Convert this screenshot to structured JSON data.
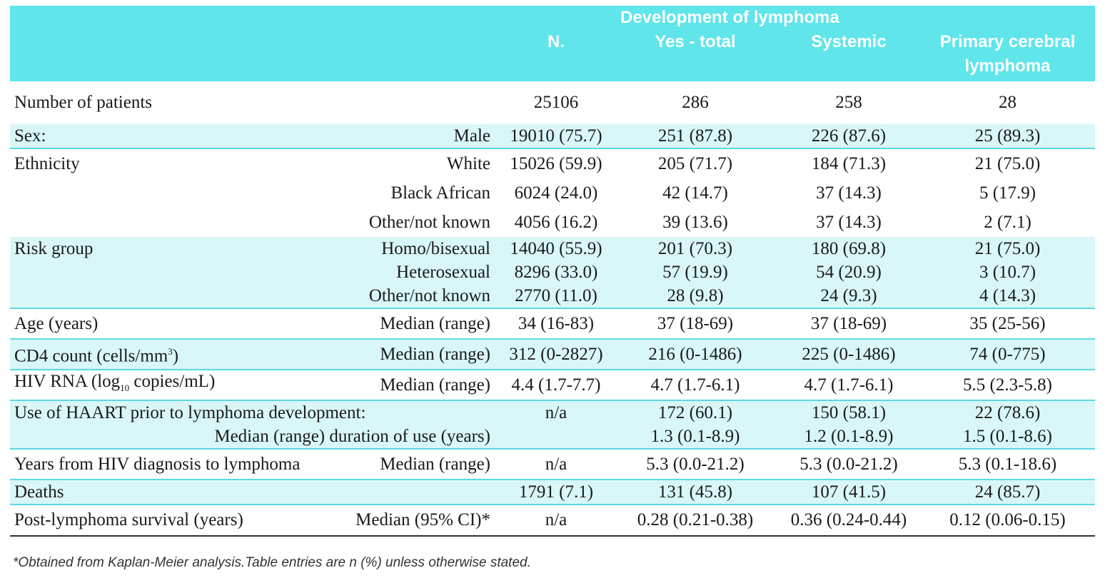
{
  "header": {
    "group_label": "Development of lymphoma",
    "col_n": "N.",
    "col_yes_total": "Yes - total",
    "col_systemic": "Systemic",
    "col_pcl_line1": "Primary cerebral",
    "col_pcl_line2": "lymphoma"
  },
  "rows": [
    {
      "label": "Number of patients",
      "sub": "",
      "n": "25106",
      "yes": "286",
      "sys": "258",
      "pcl": "28"
    },
    {
      "label": "Sex:",
      "sub": "Male",
      "n": "19010 (75.7)",
      "yes": "251 (87.8)",
      "sys": "226 (87.6)",
      "pcl": "25 (89.3)"
    },
    {
      "label": "Ethnicity",
      "sub": "White",
      "n": "15026 (59.9)",
      "yes": "205 (71.7)",
      "sys": "184 (71.3)",
      "pcl": "21 (75.0)"
    },
    {
      "label": "",
      "sub": "Black African",
      "n": "6024 (24.0)",
      "yes": "42 (14.7)",
      "sys": "37 (14.3)",
      "pcl": "5 (17.9)"
    },
    {
      "label": "",
      "sub": "Other/not known",
      "n": "4056 (16.2)",
      "yes": "39 (13.6)",
      "sys": "37 (14.3)",
      "pcl": "2 (7.1)"
    },
    {
      "label": "Risk group",
      "sub": "Homo/bisexual",
      "n": "14040 (55.9)",
      "yes": "201 (70.3)",
      "sys": "180 (69.8)",
      "pcl": "21 (75.0)"
    },
    {
      "label": "",
      "sub": "Heterosexual",
      "n": "8296 (33.0)",
      "yes": "57 (19.9)",
      "sys": "54 (20.9)",
      "pcl": "3 (10.7)"
    },
    {
      "label": "",
      "sub": "Other/not known",
      "n": "2770 (11.0)",
      "yes": "28 (9.8)",
      "sys": "24 (9.3)",
      "pcl": "4 (14.3)"
    },
    {
      "label": "Age (years)",
      "sub": "Median (range)",
      "n": "34 (16-83)",
      "yes": "37 (18-69)",
      "sys": "37 (18-69)",
      "pcl": "35 (25-56)"
    },
    {
      "label_pre": "CD4 count (cells/mm",
      "label_sup": "3",
      "label_post": ")",
      "sub": "Median (range)",
      "n": "312 (0-2827)",
      "yes": "216 (0-1486)",
      "sys": "225 (0-1486)",
      "pcl": "74 (0-775)"
    },
    {
      "label_pre": "HIV RNA (log",
      "label_sub": "10",
      "label_post": " copies/mL)",
      "sub": "Median (range)",
      "n": "4.4 (1.7-7.7)",
      "yes": "4.7 (1.7-6.1)",
      "sys": "4.7 (1.7-6.1)",
      "pcl": "5.5 (2.3-5.8)"
    },
    {
      "label": "Use of HAART prior to lymphoma development:",
      "sub": "",
      "n": "n/a",
      "yes": "172 (60.1)",
      "sys": "150 (58.1)",
      "pcl": "22 (78.6)"
    },
    {
      "label": "",
      "sub": "Median (range) duration of use (years)",
      "n": "",
      "yes": "1.3 (0.1-8.9)",
      "sys": "1.2 (0.1-8.9)",
      "pcl": "1.5 (0.1-8.6)"
    },
    {
      "label": "Years from HIV diagnosis to lymphoma",
      "sub": "Median (range)",
      "n": "n/a",
      "yes": "5.3 (0.0-21.2)",
      "sys": "5.3 (0.0-21.2)",
      "pcl": "5.3 (0.1-18.6)"
    },
    {
      "label": "Deaths",
      "sub": "",
      "n": "1791 (7.1)",
      "yes": "131 (45.8)",
      "sys": "107 (41.5)",
      "pcl": "24 (85.7)"
    },
    {
      "label": "Post-lymphoma survival (years)",
      "sub": "Median (95% CI)*",
      "n": "n/a",
      "yes": "0.28 (0.21-0.38)",
      "sys": "0.36 (0.24-0.44)",
      "pcl": "0.12 (0.06-0.15)"
    }
  ],
  "footnote": "*Obtained from Kaplan-Meier analysis.Table entries are n (%) unless otherwise stated.",
  "colors": {
    "header_bg": "#5fe5ea",
    "shade_bg": "#d9f7f9",
    "rule": "#5fd8de"
  }
}
